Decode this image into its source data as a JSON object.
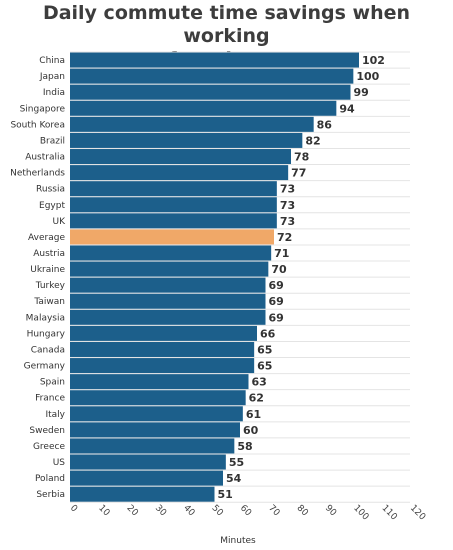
{
  "page": {
    "title_line1": "Daily commute time savings when working",
    "title_line2": "from home"
  },
  "chart_data": {
    "type": "bar",
    "orientation": "horizontal",
    "title": "Daily commute time savings when working from home",
    "xlabel": "Minutes",
    "ylabel": "",
    "xlim": [
      0,
      120
    ],
    "xticks": [
      0,
      10,
      20,
      30,
      40,
      50,
      60,
      70,
      80,
      90,
      100,
      110,
      120
    ],
    "grid": true,
    "categories": [
      "China",
      "Japan",
      "India",
      "Singapore",
      "South Korea",
      "Brazil",
      "Australia",
      "Netherlands",
      "Russia",
      "Egypt",
      "UK",
      "Average",
      "Austria",
      "Ukraine",
      "Turkey",
      "Taiwan",
      "Malaysia",
      "Hungary",
      "Canada",
      "Germany",
      "Spain",
      "France",
      "Italy",
      "Sweden",
      "Greece",
      "US",
      "Poland",
      "Serbia"
    ],
    "values": [
      102,
      100,
      99,
      94,
      86,
      82,
      78,
      77,
      73,
      73,
      73,
      72,
      71,
      70,
      69,
      69,
      69,
      66,
      65,
      65,
      63,
      62,
      61,
      60,
      58,
      55,
      54,
      51
    ],
    "colors": {
      "bar": "#1c5f8b",
      "highlight": "#f0a868",
      "grid": "#e4e4e4"
    },
    "highlight_category": "Average"
  }
}
